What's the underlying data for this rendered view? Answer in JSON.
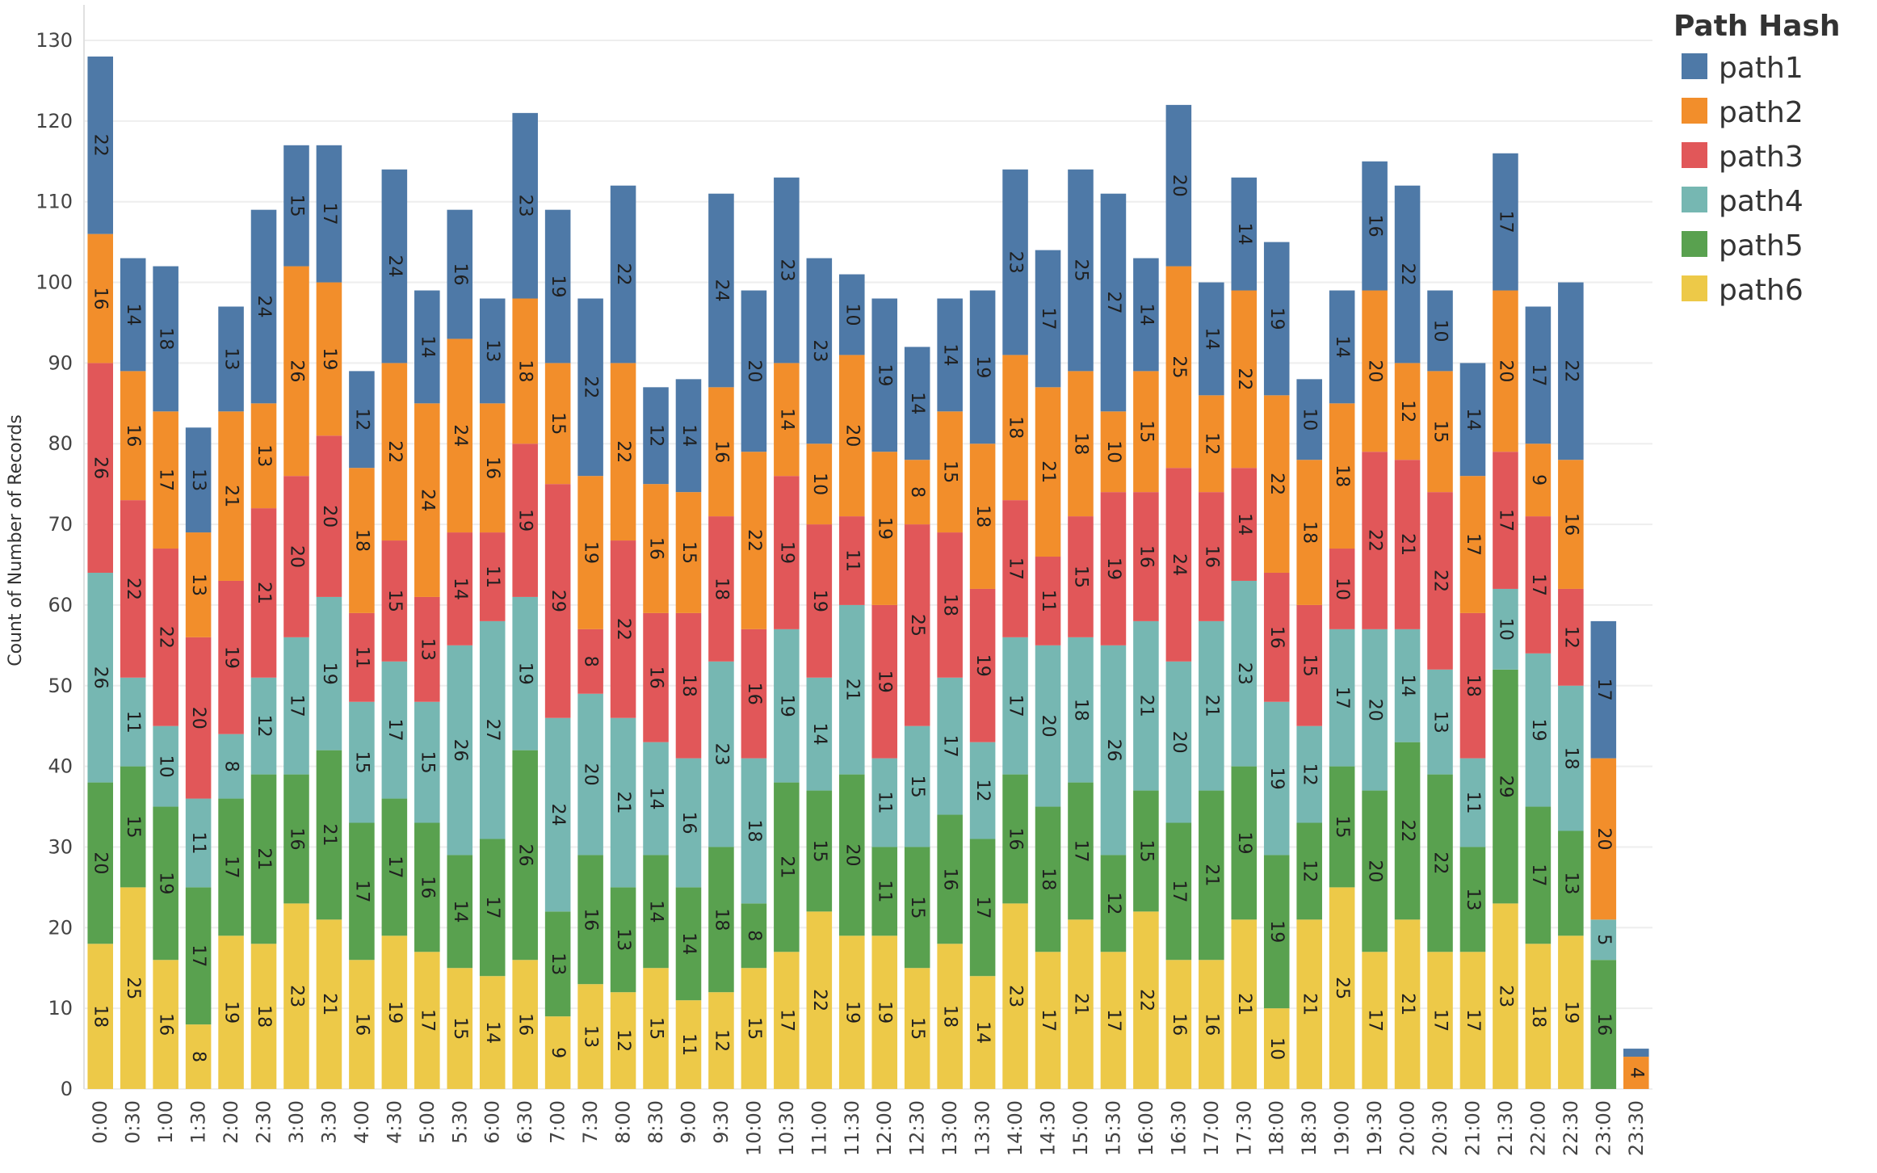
{
  "chart_data": {
    "type": "bar",
    "stacked": true,
    "ylabel": "Count of Number of Records",
    "xlabel": "",
    "ylim": [
      0,
      130
    ],
    "yticks": [
      0,
      10,
      20,
      30,
      40,
      50,
      60,
      70,
      80,
      90,
      100,
      110,
      120,
      130
    ],
    "grid": true,
    "legend": {
      "title": "Path Hash",
      "placement": "top-right"
    },
    "categories": [
      "0:00",
      "0:30",
      "1:00",
      "1:30",
      "2:00",
      "2:30",
      "3:00",
      "3:30",
      "4:00",
      "4:30",
      "5:00",
      "5:30",
      "6:00",
      "6:30",
      "7:00",
      "7:30",
      "8:00",
      "8:30",
      "9:00",
      "9:30",
      "10:00",
      "10:30",
      "11:00",
      "11:30",
      "12:00",
      "12:30",
      "13:00",
      "13:30",
      "14:00",
      "14:30",
      "15:00",
      "15:30",
      "16:00",
      "16:30",
      "17:00",
      "17:30",
      "18:00",
      "18:30",
      "19:00",
      "19:30",
      "20:00",
      "20:30",
      "21:00",
      "21:30",
      "22:00",
      "22:30",
      "23:00",
      "23:30"
    ],
    "series": [
      {
        "name": "path6",
        "color": "#EDC948",
        "values": [
          18,
          25,
          16,
          8,
          19,
          18,
          23,
          21,
          16,
          19,
          17,
          15,
          14,
          16,
          9,
          13,
          12,
          15,
          11,
          12,
          15,
          17,
          22,
          19,
          19,
          15,
          18,
          14,
          23,
          17,
          21,
          17,
          22,
          16,
          16,
          21,
          10,
          21,
          25,
          17,
          21,
          17,
          17,
          23,
          18,
          19,
          0,
          0
        ]
      },
      {
        "name": "path5",
        "color": "#59A14F",
        "values": [
          20,
          15,
          19,
          17,
          17,
          21,
          16,
          21,
          17,
          17,
          16,
          14,
          17,
          26,
          13,
          16,
          13,
          14,
          14,
          18,
          8,
          21,
          15,
          20,
          11,
          15,
          16,
          17,
          16,
          18,
          17,
          12,
          15,
          17,
          21,
          19,
          19,
          12,
          15,
          20,
          22,
          22,
          13,
          29,
          17,
          13,
          16,
          0
        ]
      },
      {
        "name": "path4",
        "color": "#76B7B2",
        "values": [
          26,
          11,
          10,
          11,
          8,
          12,
          17,
          19,
          15,
          17,
          15,
          26,
          27,
          19,
          24,
          20,
          21,
          14,
          16,
          23,
          18,
          19,
          14,
          21,
          11,
          15,
          17,
          12,
          17,
          20,
          18,
          26,
          21,
          20,
          21,
          23,
          19,
          12,
          17,
          20,
          14,
          13,
          11,
          10,
          19,
          18,
          5,
          0
        ]
      },
      {
        "name": "path3",
        "color": "#E15759",
        "values": [
          26,
          22,
          22,
          20,
          19,
          21,
          20,
          20,
          11,
          15,
          13,
          14,
          11,
          19,
          29,
          8,
          22,
          16,
          18,
          18,
          16,
          19,
          19,
          11,
          19,
          25,
          18,
          19,
          17,
          11,
          15,
          19,
          16,
          24,
          16,
          14,
          16,
          15,
          10,
          22,
          21,
          22,
          18,
          17,
          17,
          12,
          0,
          0
        ]
      },
      {
        "name": "path2",
        "color": "#F28E2B",
        "values": [
          16,
          16,
          17,
          13,
          21,
          13,
          26,
          19,
          18,
          22,
          24,
          24,
          16,
          18,
          15,
          19,
          22,
          16,
          15,
          16,
          22,
          14,
          10,
          20,
          19,
          8,
          15,
          18,
          18,
          21,
          18,
          10,
          15,
          25,
          12,
          22,
          22,
          18,
          18,
          20,
          12,
          15,
          17,
          20,
          9,
          16,
          20,
          4
        ]
      },
      {
        "name": "path1",
        "color": "#4E79A7",
        "values": [
          22,
          14,
          18,
          13,
          13,
          24,
          15,
          17,
          12,
          24,
          14,
          16,
          13,
          23,
          19,
          22,
          22,
          12,
          14,
          24,
          20,
          23,
          23,
          10,
          19,
          14,
          14,
          19,
          23,
          17,
          25,
          27,
          14,
          20,
          14,
          14,
          19,
          10,
          14,
          16,
          22,
          10,
          14,
          17,
          17,
          22,
          17,
          1
        ]
      }
    ],
    "legend_order": [
      "path1",
      "path2",
      "path3",
      "path4",
      "path5",
      "path6"
    ]
  }
}
